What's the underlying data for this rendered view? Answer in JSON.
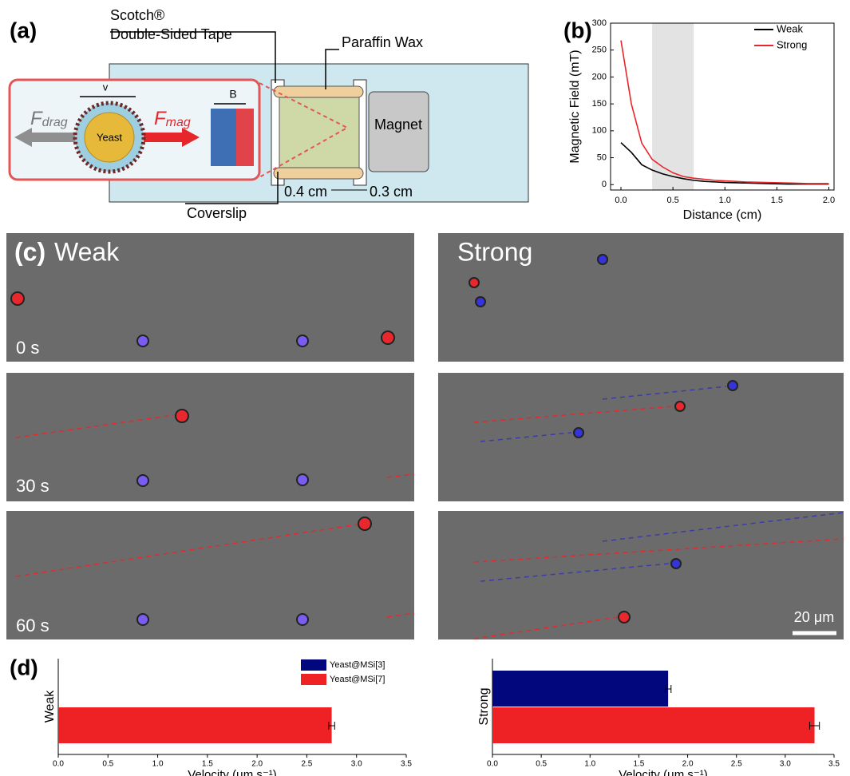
{
  "panels": {
    "a": "(a)",
    "b": "(b)",
    "c": "(c)",
    "d": "(d)"
  },
  "diagram": {
    "tape_line1": "Scotch®",
    "tape_line2": "Double-Sided Tape",
    "wax": "Paraffin Wax",
    "magnet": "Magnet",
    "coverslip": "Coverslip",
    "gap1": "0.4 cm",
    "gap2": "0.3 cm",
    "yeast": "Yeast",
    "velocity": "v",
    "field": "B",
    "drag": {
      "symbol": "F",
      "subscript": "drag"
    },
    "mag": {
      "symbol": "F",
      "subscript": "mag"
    }
  },
  "micrographs": {
    "weak": "Weak",
    "strong": "Strong",
    "times": [
      "0 s",
      "30 s",
      "60 s"
    ],
    "scale_bar": "20 μm"
  },
  "chart_data": [
    {
      "type": "line",
      "xlabel": "Distance (cm)",
      "ylabel": "Magnetic Field (mT)",
      "x": [
        0,
        0.1,
        0.2,
        0.3,
        0.4,
        0.5,
        0.6,
        0.7,
        0.8,
        0.9,
        1.0,
        1.2,
        1.4,
        1.6,
        1.8,
        2.0
      ],
      "series": [
        {
          "name": "Weak",
          "color": "#000000",
          "values": [
            78,
            60,
            37,
            27,
            20,
            15,
            11,
            8,
            6,
            5,
            4,
            3,
            2,
            1,
            1,
            1
          ]
        },
        {
          "name": "Strong",
          "color": "#e8262b",
          "values": [
            268,
            150,
            77,
            47,
            33,
            22,
            15,
            12,
            10,
            8,
            7,
            5,
            4,
            3,
            2,
            2
          ]
        }
      ],
      "shaded_region": [
        0.3,
        0.7
      ],
      "xlim": [
        -0.1,
        2.05
      ],
      "ylim": [
        -10,
        300
      ],
      "xticks": [
        {
          "value": 0,
          "label": "0.0"
        },
        {
          "value": 0.5,
          "label": "0.5"
        },
        {
          "value": 1,
          "label": "1.0"
        },
        {
          "value": 1.5,
          "label": "1.5"
        },
        {
          "value": 2,
          "label": "2.0"
        }
      ],
      "yticks": [
        0,
        50,
        100,
        150,
        200,
        250,
        300
      ],
      "legend": "upper right"
    },
    {
      "type": "hbar",
      "ylabel": "Weak",
      "xlabel": "Velocity (μm s⁻¹)",
      "categories": [
        null
      ],
      "series": [
        {
          "name": "Yeast@MSi[3]",
          "color": "#02077d",
          "values": [
            null
          ],
          "errors": [
            null
          ]
        },
        {
          "name": "Yeast@MSi[7]",
          "color": "#ee2124",
          "values": [
            2.75
          ],
          "errors": [
            0.03
          ]
        }
      ],
      "xlim": [
        0,
        3.5
      ],
      "xticks": [
        {
          "value": 0,
          "label": "0.0"
        },
        {
          "value": 0.5,
          "label": "0.5"
        },
        {
          "value": 1,
          "label": "1.0"
        },
        {
          "value": 1.5,
          "label": "1.5"
        },
        {
          "value": 2,
          "label": "2.0"
        },
        {
          "value": 2.5,
          "label": "2.5"
        },
        {
          "value": 3,
          "label": "3.0"
        },
        {
          "value": 3.5,
          "label": "3.5"
        }
      ],
      "legend": "upper right"
    },
    {
      "type": "hbar",
      "ylabel": "Strong",
      "xlabel": "Velocity (μm s⁻¹)",
      "categories": [
        null
      ],
      "series": [
        {
          "color": "#02077d",
          "values": [
            1.8
          ],
          "errors": [
            0.03
          ]
        },
        {
          "color": "#ee2124",
          "values": [
            3.3
          ],
          "errors": [
            0.05
          ]
        }
      ],
      "xlim": [
        0,
        3.5
      ],
      "xticks": [
        {
          "value": 0,
          "label": "0.0"
        },
        {
          "value": 0.5,
          "label": "0.5"
        },
        {
          "value": 1,
          "label": "1.0"
        },
        {
          "value": 1.5,
          "label": "1.5"
        },
        {
          "value": 2,
          "label": "2.0"
        },
        {
          "value": 2.5,
          "label": "2.5"
        },
        {
          "value": 3,
          "label": "3.0"
        },
        {
          "value": 3.5,
          "label": "3.5"
        }
      ],
      "legend": false
    }
  ]
}
